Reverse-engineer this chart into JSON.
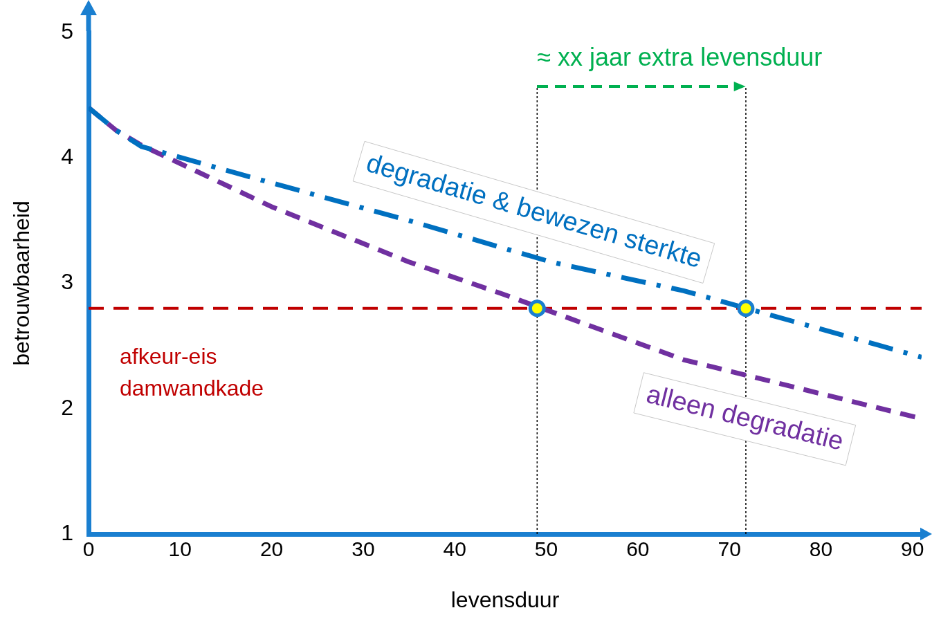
{
  "chart_data": {
    "type": "line",
    "xlabel": "levensduur",
    "ylabel": "betrouwbaarheid",
    "xlim": [
      0,
      91
    ],
    "xticks": [
      0,
      10,
      20,
      30,
      40,
      50,
      60,
      70,
      80,
      90
    ],
    "ylim": [
      1,
      5
    ],
    "yticks": [
      1,
      2,
      3,
      4,
      5
    ],
    "grid": false,
    "legend": false,
    "series": [
      {
        "name": "degradatie & bewezen sterkte",
        "color": "#0070c0",
        "line_style": "dashdot",
        "marker": "none",
        "x": [
          0,
          3,
          5.8,
          20,
          35,
          50.5,
          65,
          91
        ],
        "values": [
          4.4,
          4.22,
          4.09,
          3.8,
          3.5,
          3.17,
          2.94,
          2.41
        ]
      },
      {
        "name": "alleen degradatie",
        "color": "#7030a0",
        "line_style": "dashed",
        "marker": "none",
        "x": [
          0,
          3,
          5.8,
          20,
          35,
          45,
          65,
          91
        ],
        "values": [
          4.4,
          4.22,
          4.1,
          3.61,
          3.17,
          2.92,
          2.39,
          1.92
        ]
      },
      {
        "type": "scatter",
        "color": "#ffff00",
        "marker": "circle",
        "x": [
          49,
          71.8
        ],
        "values": [
          2.8,
          2.8
        ]
      }
    ],
    "ref_lines": [
      {
        "axis": "y",
        "value": 2.8,
        "label": "afkeur-eis\ndamwandkade",
        "color": "#c00000",
        "line_style": "dashed"
      },
      {
        "axis": "x",
        "value": 49,
        "color": "#000000",
        "line_style": "dotted"
      },
      {
        "axis": "x",
        "value": 71.8,
        "color": "#000000",
        "line_style": "dotted"
      }
    ],
    "annotations": [
      {
        "text": "≈ xx jaar extra levensduur",
        "x": 49,
        "y": 4.57
      }
    ]
  }
}
